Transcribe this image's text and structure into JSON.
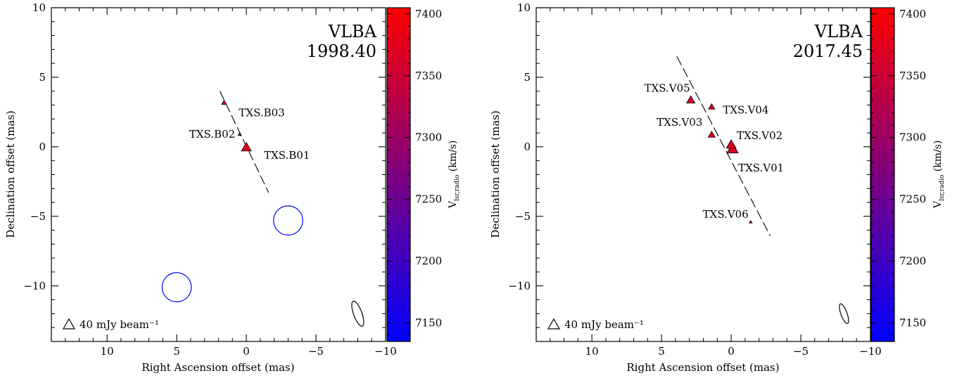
{
  "chart_data": [
    {
      "type": "scatter",
      "xlabel": "Right Ascension offset (mas)",
      "ylabel": "Declination offset (mas)",
      "xlim": [
        14,
        -10
      ],
      "ylim": [
        -14,
        10
      ],
      "xticks": [
        10,
        5,
        0,
        -5,
        -10
      ],
      "yticks": [
        10,
        5,
        0,
        -5,
        -10
      ],
      "xtick_labels": [
        "10",
        "5",
        "0",
        "−5",
        "−10"
      ],
      "ytick_labels": [
        "10",
        "5",
        "0",
        "−5",
        "−10"
      ],
      "annotation_lines": [
        "VLBA",
        "1998.40"
      ],
      "legend_text": "40 mJy beam⁻¹",
      "colorbar": {
        "label_main": "V",
        "label_sub": "lsr,radio",
        "label_unit": " (km/s)",
        "min": 7135,
        "max": 7405,
        "ticks": [
          7150,
          7200,
          7250,
          7300,
          7350,
          7400
        ],
        "low_color": "#0000ff",
        "high_color": "#ff0000"
      },
      "points": [
        {
          "label": "TXS.B01",
          "x": 0.0,
          "y": 0.0,
          "velocity": 7370,
          "size": 7
        },
        {
          "label": "TXS.B02",
          "x": 0.5,
          "y": 0.9,
          "velocity": 7365,
          "size": 2
        },
        {
          "label": "TXS.B03",
          "x": 1.6,
          "y": 3.2,
          "velocity": 7360,
          "size": 3.5
        }
      ],
      "fit_line": {
        "from": [
          1.9,
          4.0
        ],
        "to": [
          -1.6,
          -3.3
        ]
      },
      "circles": [
        {
          "x": -3.0,
          "y": -5.3,
          "r": 1.05
        },
        {
          "x": 5.0,
          "y": -10.1,
          "r": 1.05
        }
      ],
      "beam": {
        "x": -8.0,
        "y": -12.0,
        "major": 0.95,
        "minor": 0.3,
        "tilt": -20
      }
    },
    {
      "type": "scatter",
      "xlabel": "Right Ascension offset (mas)",
      "ylabel": "Declination offset (mas)",
      "xlim": [
        14,
        -10
      ],
      "ylim": [
        -14,
        10
      ],
      "xticks": [
        10,
        5,
        0,
        -5,
        -10
      ],
      "yticks": [
        10,
        5,
        0,
        -5,
        -10
      ],
      "xtick_labels": [
        "10",
        "5",
        "0",
        "−5",
        "−10"
      ],
      "ytick_labels": [
        "10",
        "5",
        "0",
        "−5",
        "−10"
      ],
      "annotation_lines": [
        "VLBA",
        "2017.45"
      ],
      "legend_text": "40 mJy beam⁻¹",
      "colorbar": {
        "label_main": "V",
        "label_sub": "lsr,radio",
        "label_unit": " (km/s)",
        "min": 7135,
        "max": 7405,
        "ticks": [
          7150,
          7200,
          7250,
          7300,
          7350,
          7400
        ],
        "low_color": "#0000ff",
        "high_color": "#ff0000"
      },
      "points": [
        {
          "label": "TXS.V01",
          "x": -0.1,
          "y": -0.1,
          "velocity": 7370,
          "size": 8
        },
        {
          "label": "TXS.V02",
          "x": 0.0,
          "y": 0.2,
          "velocity": 7365,
          "size": 7
        },
        {
          "label": "TXS.V03",
          "x": 1.4,
          "y": 0.9,
          "velocity": 7365,
          "size": 5
        },
        {
          "label": "TXS.V04",
          "x": 1.4,
          "y": 2.9,
          "velocity": 7360,
          "size": 4.5
        },
        {
          "label": "TXS.V05",
          "x": 2.9,
          "y": 3.4,
          "velocity": 7365,
          "size": 6
        },
        {
          "label": "TXS.V06",
          "x": -1.4,
          "y": -5.4,
          "velocity": 7320,
          "size": 2
        }
      ],
      "fit_line": {
        "from": [
          3.9,
          6.5
        ],
        "to": [
          -2.8,
          -6.4
        ]
      },
      "circles": [],
      "beam": {
        "x": -8.1,
        "y": -12.0,
        "major": 0.75,
        "minor": 0.22,
        "tilt": -20
      }
    }
  ]
}
